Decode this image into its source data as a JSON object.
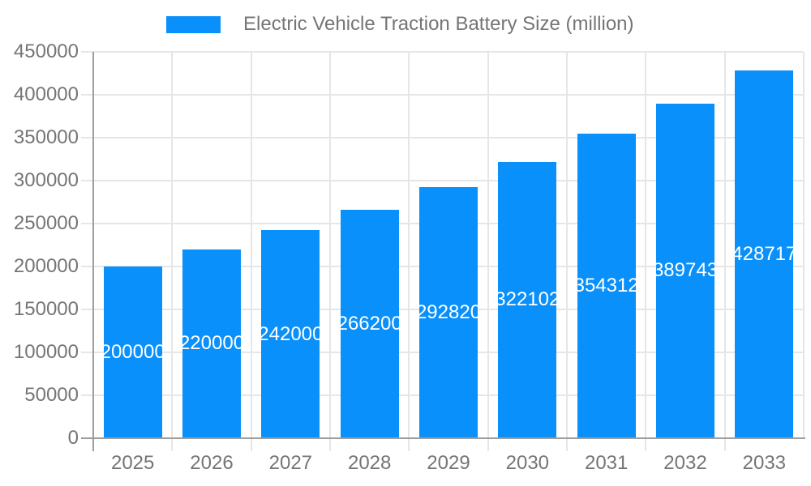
{
  "legend": {
    "label": "Electric Vehicle Traction Battery Size (million)"
  },
  "chart_data": {
    "type": "bar",
    "title": "Electric Vehicle Traction Battery Size (million)",
    "categories": [
      "2025",
      "2026",
      "2027",
      "2028",
      "2029",
      "2030",
      "2031",
      "2032",
      "2033"
    ],
    "values": [
      200000,
      220000,
      242000,
      266200,
      292820,
      322102,
      354312,
      389743,
      428717
    ],
    "bar_labels": [
      "200000",
      "220000",
      "242000",
      "266200",
      "292820",
      "322102",
      "354312",
      "389743",
      "428717"
    ],
    "xlabel": "",
    "ylabel": "",
    "ylim": [
      0,
      450000
    ],
    "ytick_step": 50000,
    "yticks": [
      "0",
      "50000",
      "100000",
      "150000",
      "200000",
      "250000",
      "300000",
      "350000",
      "400000",
      "450000"
    ],
    "grid": true,
    "legend_position": "top",
    "colors": {
      "bar": "#0a90fa",
      "grid": "#e6e6e6",
      "axis": "#9e9e9e",
      "text": "#757575",
      "bar_label": "#ffffff",
      "background": "#ffffff"
    }
  }
}
